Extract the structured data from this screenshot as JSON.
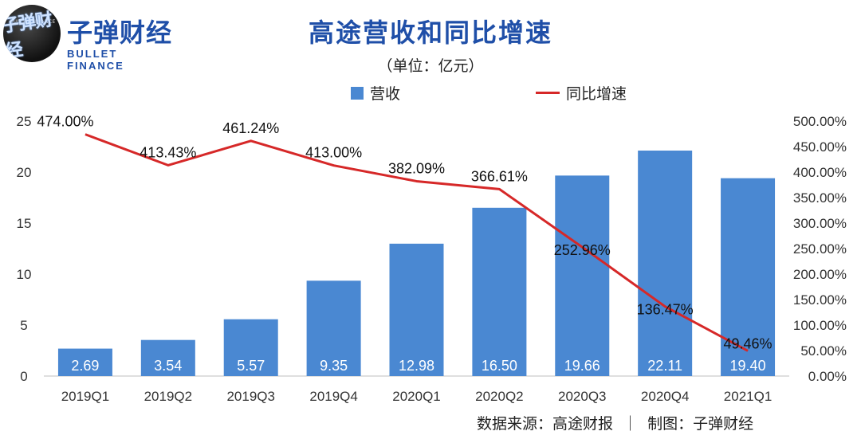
{
  "header": {
    "logo_cn": "子弹财经",
    "logo_en": "BULLET FINANCE",
    "logo_badge_small": "BULLET FINANCE",
    "logo_badge_main": "子弹财经",
    "title": "高途营收和同比增速",
    "subtitle": "（单位：亿元）"
  },
  "legend": {
    "bar_label": "营收",
    "line_label": "同比增速"
  },
  "footer": {
    "source": "数据来源：高途财报  ｜  制图：子弹财经"
  },
  "colors": {
    "bar": "#4a88d2",
    "line": "#d62828",
    "title": "#1f4fa8"
  },
  "chart_data": {
    "type": "bar",
    "categories": [
      "2019Q1",
      "2019Q2",
      "2019Q3",
      "2019Q4",
      "2020Q1",
      "2020Q2",
      "2020Q3",
      "2020Q4",
      "2021Q1"
    ],
    "series": [
      {
        "name": "营收",
        "type": "bar",
        "axis": "left",
        "values": [
          2.69,
          3.54,
          5.57,
          9.35,
          12.98,
          16.5,
          19.66,
          22.11,
          19.4
        ],
        "labels": [
          "2.69",
          "3.54",
          "5.57",
          "9.35",
          "12.98",
          "16.50",
          "19.66",
          "22.11",
          "19.40"
        ]
      },
      {
        "name": "同比增速",
        "type": "line",
        "axis": "right",
        "values": [
          474.0,
          413.43,
          461.24,
          413.0,
          382.09,
          366.61,
          252.96,
          136.47,
          49.46
        ],
        "labels": [
          "474.00%",
          "413.43%",
          "461.24%",
          "413.00%",
          "382.09%",
          "366.61%",
          "252.96%",
          "136.47%",
          "49.46%"
        ]
      }
    ],
    "left_axis": {
      "ylim": [
        0,
        25
      ],
      "ticks": [
        0,
        5,
        10,
        15,
        20,
        25
      ],
      "tick_labels": [
        "0",
        "5",
        "10",
        "15",
        "20",
        "25"
      ]
    },
    "right_axis": {
      "ylim": [
        0,
        500
      ],
      "ticks": [
        0,
        50,
        100,
        150,
        200,
        250,
        300,
        350,
        400,
        450,
        500
      ],
      "tick_labels": [
        "0.00%",
        "50.00%",
        "100.00%",
        "150.00%",
        "200.00%",
        "250.00%",
        "300.00%",
        "350.00%",
        "400.00%",
        "450.00%",
        "500.00%"
      ]
    },
    "grid": false,
    "legend_position": "top-center"
  }
}
